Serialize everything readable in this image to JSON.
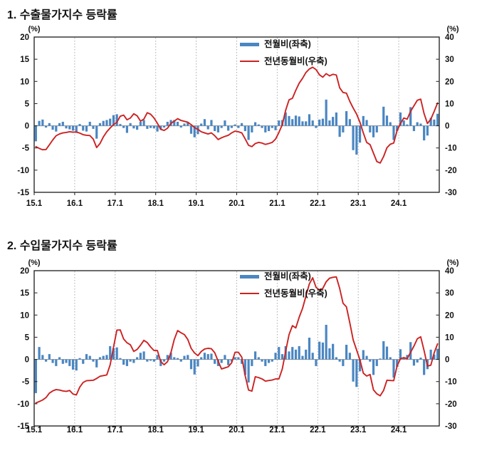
{
  "page": {
    "background": "#ffffff"
  },
  "colors": {
    "bar_blue": "#4A86C2",
    "line_red": "#CC2222",
    "grid_gray": "#ababab",
    "zero_gray": "#8f8f8f",
    "border_black": "#1a1a1a",
    "text_black": "#111111"
  },
  "chart_data": [
    {
      "type": "combo",
      "title": "1. 수출물가지수 등락률",
      "x_freq": "monthly",
      "x_range": [
        "15.1",
        "24.12"
      ],
      "n_points": 120,
      "x_tick_labels": [
        "15.1",
        "16.1",
        "17.1",
        "18.1",
        "19.1",
        "20.1",
        "21.1",
        "22.1",
        "23.1",
        "24.1"
      ],
      "left_axis": {
        "unit": "(%)",
        "min": -15,
        "max": 20,
        "ticks": [
          20,
          15,
          10,
          5,
          0,
          -5,
          -10,
          -15
        ]
      },
      "right_axis": {
        "unit": "(%)",
        "min": -30,
        "max": 40,
        "ticks": [
          40,
          30,
          20,
          10,
          0,
          -10,
          -20,
          -30
        ]
      },
      "grid": {
        "vertical_yearly_dashed": true,
        "zero_line": true,
        "legend_position": "top-center-inside"
      },
      "series": [
        {
          "name": "전월비(좌축)",
          "type": "bar",
          "axis": "left",
          "color": "#4A86C2",
          "values": [
            -3.5,
            1.1,
            1.4,
            -0.4,
            0.6,
            -0.9,
            -1.3,
            0.6,
            0.9,
            -0.6,
            -0.8,
            -1.1,
            -1.6,
            0.4,
            -1.1,
            -1.3,
            0.9,
            -0.7,
            -2.9,
            0.6,
            1.1,
            1.3,
            1.6,
            2.4,
            2.6,
            0.4,
            -0.5,
            -1.6,
            0.6,
            -0.6,
            -0.9,
            0.9,
            1.3,
            -0.7,
            -0.5,
            -0.6,
            -1.3,
            -0.9,
            -0.4,
            0.9,
            1.3,
            1.3,
            0.9,
            -0.4,
            0.5,
            0.9,
            -1.8,
            -2.6,
            -1.9,
            0.5,
            1.5,
            -0.8,
            1.3,
            -1.2,
            -1.5,
            -0.5,
            1.2,
            -1.1,
            -0.5,
            0.3,
            -0.5,
            0.6,
            -1.2,
            -3.2,
            -1.5,
            0.8,
            0.3,
            -0.5,
            -1.5,
            -1.2,
            -0.5,
            -1.0,
            1.2,
            1.3,
            3.0,
            2.2,
            1.5,
            2.3,
            2.1,
            1.0,
            1.0,
            2.6,
            1.2,
            -0.5,
            1.4,
            1.6,
            5.9,
            1.2,
            2.0,
            3.0,
            -2.5,
            -1.5,
            3.3,
            1.5,
            -5.5,
            -6.5,
            -3.8,
            2.2,
            1.3,
            -1.5,
            -2.6,
            -1.5,
            0.1,
            4.3,
            2.3,
            0.8,
            -3.2,
            -1.2,
            3.0,
            1.2,
            0.3,
            4.2,
            -1.2,
            0.8,
            0.5,
            -3.3,
            -2.2,
            1.8,
            1.4,
            2.7
          ]
        },
        {
          "name": "전년동월비(우축)",
          "type": "line",
          "axis": "right",
          "color": "#CC2222",
          "values": [
            -9.4,
            -10.2,
            -10.8,
            -10.7,
            -8.6,
            -6.4,
            -4.5,
            -3.7,
            -3.2,
            -3.0,
            -2.7,
            -2.9,
            -2.8,
            -3.3,
            -4.0,
            -4.3,
            -4.4,
            -6.0,
            -9.8,
            -8.0,
            -5.0,
            -2.7,
            -1.0,
            0.5,
            1.6,
            4.3,
            4.8,
            2.7,
            3.5,
            5.4,
            4.5,
            2.1,
            3.0,
            5.9,
            5.2,
            3.5,
            1.1,
            -1.6,
            -2.1,
            -1.1,
            1.1,
            2.1,
            3.2,
            2.4,
            2.0,
            1.6,
            0.5,
            -0.8,
            -1.6,
            -2.7,
            -3.2,
            -3.7,
            -3.2,
            -4.5,
            -6.2,
            -5.4,
            -4.8,
            -4.3,
            -3.2,
            -2.4,
            -2.7,
            -3.2,
            -5.9,
            -8.8,
            -9.4,
            -8.0,
            -7.5,
            -7.8,
            -8.4,
            -8.0,
            -7.5,
            -6.0,
            -3.0,
            0.5,
            7.0,
            11.7,
            12.4,
            16.0,
            19.2,
            21.4,
            24.0,
            25.6,
            26.4,
            25.3,
            23.0,
            21.9,
            23.5,
            22.5,
            23.2,
            22.9,
            17.1,
            15.0,
            14.7,
            11.0,
            8.0,
            5.3,
            1.6,
            -3.2,
            -7.5,
            -8.5,
            -12.3,
            -16.1,
            -16.8,
            -13.9,
            -9.9,
            -8.3,
            -7.8,
            -2.2,
            1.0,
            3.5,
            3.0,
            6.5,
            9.0,
            11.5,
            12.0,
            5.5,
            1.0,
            3.0,
            6.5,
            10.3
          ]
        }
      ]
    },
    {
      "type": "combo",
      "title": "2. 수입물가지수 등락률",
      "x_freq": "monthly",
      "x_range": [
        "15.1",
        "24.12"
      ],
      "n_points": 120,
      "x_tick_labels": [
        "15.1",
        "16.1",
        "17.1",
        "18.1",
        "19.1",
        "20.1",
        "21.1",
        "22.1",
        "23.1",
        "24.1"
      ],
      "left_axis": {
        "unit": "(%)",
        "min": -15,
        "max": 20,
        "ticks": [
          20,
          15,
          10,
          5,
          0,
          -5,
          -10,
          -15
        ]
      },
      "right_axis": {
        "unit": "(%)",
        "min": -30,
        "max": 40,
        "ticks": [
          40,
          30,
          20,
          10,
          0,
          -10,
          -20,
          -30
        ]
      },
      "grid": {
        "vertical_yearly_dashed": true,
        "zero_line": true,
        "legend_position": "top-center-inside"
      },
      "series": [
        {
          "name": "전월비(좌축)",
          "type": "bar",
          "axis": "left",
          "color": "#4A86C2",
          "values": [
            -7.6,
            2.8,
            1.0,
            -0.5,
            1.2,
            -0.8,
            -1.5,
            0.5,
            -1.0,
            -0.8,
            -1.5,
            -2.3,
            -2.5,
            0.3,
            -1.0,
            1.2,
            0.8,
            -0.5,
            -1.8,
            0.5,
            0.8,
            1.0,
            3.0,
            2.5,
            2.7,
            0.3,
            -1.2,
            -1.5,
            -0.5,
            -0.8,
            0.5,
            1.5,
            1.8,
            -0.5,
            -0.3,
            -0.5,
            1.0,
            -1.5,
            -0.5,
            1.0,
            1.5,
            0.5,
            0.3,
            -0.5,
            0.8,
            1.0,
            -2.2,
            -3.4,
            -1.6,
            0.5,
            1.5,
            1.2,
            1.3,
            -1.0,
            -1.5,
            -0.8,
            1.0,
            -1.3,
            -0.5,
            0.5,
            0.5,
            -1.0,
            -3.5,
            -5.2,
            -1.5,
            1.8,
            0.5,
            -0.5,
            -1.5,
            -0.8,
            -0.5,
            1.5,
            2.8,
            1.2,
            3.0,
            1.8,
            2.8,
            2.2,
            3.0,
            0.8,
            2.2,
            4.9,
            1.5,
            -1.5,
            4.0,
            3.8,
            7.8,
            2.5,
            3.5,
            0.5,
            -0.5,
            -1.5,
            3.3,
            1.5,
            -5.0,
            -6.2,
            -2.7,
            2.1,
            0.8,
            -0.5,
            -3.5,
            -1.5,
            0.2,
            4.1,
            2.9,
            0.5,
            -4.1,
            -1.7,
            2.3,
            0.5,
            1.0,
            3.9,
            -1.4,
            -0.7,
            0.4,
            -3.5,
            -2.2,
            2.2,
            1.1,
            2.4
          ]
        },
        {
          "name": "전년동월비(우축)",
          "type": "line",
          "axis": "right",
          "color": "#CC2222",
          "values": [
            -19.6,
            -19.0,
            -18.3,
            -17.2,
            -15.2,
            -14.2,
            -13.6,
            -13.8,
            -14.2,
            -14.4,
            -14.0,
            -15.6,
            -16.0,
            -12.5,
            -10.4,
            -9.6,
            -9.5,
            -9.4,
            -8.6,
            -7.6,
            -7.3,
            -7.0,
            -2.5,
            5.5,
            13.2,
            13.3,
            9.2,
            7.5,
            6.6,
            3.6,
            4.5,
            6.4,
            8.6,
            7.6,
            5.6,
            4.0,
            4.0,
            -1.0,
            -2.4,
            -1.0,
            3.0,
            9.0,
            13.0,
            12.0,
            11.2,
            9.0,
            5.0,
            2.9,
            1.7,
            3.6,
            4.7,
            5.0,
            4.8,
            3.0,
            -0.8,
            -4.3,
            -3.8,
            -3.3,
            -1.5,
            3.2,
            3.2,
            1.0,
            -7.3,
            -13.8,
            -14.3,
            -7.8,
            -8.2,
            -8.8,
            -9.8,
            -9.5,
            -9.3,
            -8.8,
            -8.8,
            -4.3,
            3.7,
            11.2,
            15.2,
            14.2,
            19.0,
            23.0,
            28.5,
            34.0,
            36.8,
            32.5,
            31.3,
            32.0,
            35.0,
            36.6,
            37.0,
            37.2,
            32.0,
            25.3,
            23.7,
            16.5,
            8.8,
            4.3,
            -0.2,
            -6.2,
            -7.5,
            -6.8,
            -13.7,
            -15.5,
            -16.4,
            -14.0,
            -9.4,
            -9.5,
            -9.6,
            -3.0,
            0.3,
            0.8,
            0.3,
            3.2,
            6.0,
            9.3,
            10.2,
            4.0,
            -3.0,
            -2.6,
            3.0,
            7.0
          ]
        }
      ]
    }
  ]
}
